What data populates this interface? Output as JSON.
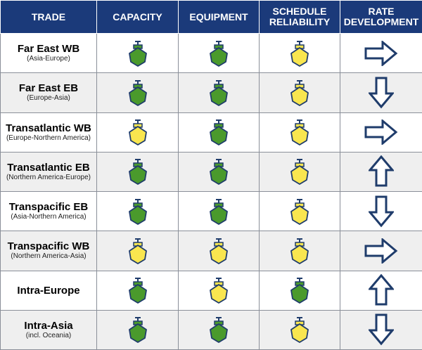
{
  "headers": [
    "TRADE",
    "CAPACITY",
    "EQUIPMENT",
    "SCHEDULE\nRELIABILITY",
    "RATE\nDEVELOPMENT"
  ],
  "colors": {
    "header_bg": "#1b3a7a",
    "green": "#4a9a2c",
    "yellow": "#f9e64f",
    "ship_outline": "#1f3c6b",
    "arrow_outline": "#1f3c6b"
  },
  "rows": [
    {
      "name": "Far East WB",
      "sub": "(Asia-Europe)",
      "capacity": "green",
      "equipment": "green",
      "reliability": "yellow",
      "rate": "right"
    },
    {
      "name": "Far East EB",
      "sub": "(Europe-Asia)",
      "capacity": "green",
      "equipment": "green",
      "reliability": "yellow",
      "rate": "down"
    },
    {
      "name": "Transatlantic WB",
      "sub": "(Europe-Northern America)",
      "capacity": "yellow",
      "equipment": "green",
      "reliability": "yellow",
      "rate": "right"
    },
    {
      "name": "Transatlantic EB",
      "sub": "(Northern America-Europe)",
      "capacity": "green",
      "equipment": "green",
      "reliability": "yellow",
      "rate": "up"
    },
    {
      "name": "Transpacific EB",
      "sub": "(Asia-Northern America)",
      "capacity": "green",
      "equipment": "green",
      "reliability": "yellow",
      "rate": "down"
    },
    {
      "name": "Transpacific WB",
      "sub": "(Northern America-Asia)",
      "capacity": "yellow",
      "equipment": "yellow",
      "reliability": "yellow",
      "rate": "right"
    },
    {
      "name": "Intra-Europe",
      "sub": "",
      "capacity": "green",
      "equipment": "yellow",
      "reliability": "green",
      "rate": "up"
    },
    {
      "name": "Intra-Asia",
      "sub": "(incl. Oceania)",
      "capacity": "green",
      "equipment": "green",
      "reliability": "yellow",
      "rate": "down"
    }
  ]
}
